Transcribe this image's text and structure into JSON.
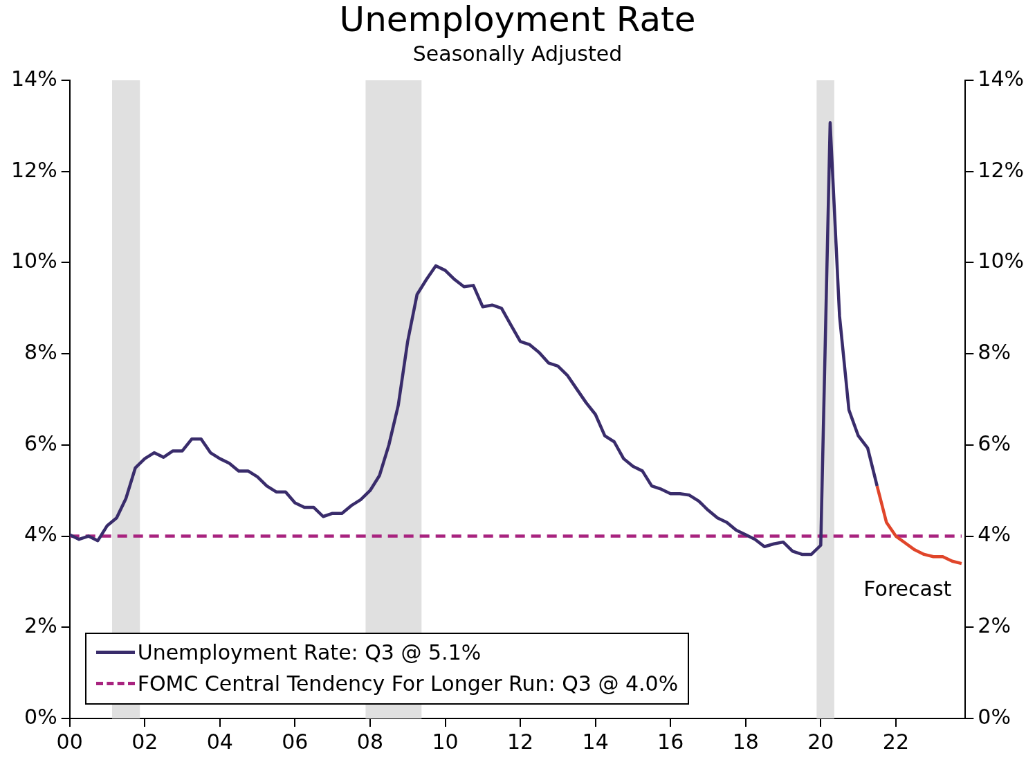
{
  "chart_data": {
    "type": "line",
    "title": "Unemployment Rate",
    "subtitle": "Seasonally Adjusted",
    "xlim": [
      2000,
      2023.85
    ],
    "xticks": [
      {
        "value": 2000,
        "label": "00"
      },
      {
        "value": 2002,
        "label": "02"
      },
      {
        "value": 2004,
        "label": "04"
      },
      {
        "value": 2006,
        "label": "06"
      },
      {
        "value": 2008,
        "label": "08"
      },
      {
        "value": 2010,
        "label": "10"
      },
      {
        "value": 2012,
        "label": "12"
      },
      {
        "value": 2014,
        "label": "14"
      },
      {
        "value": 2016,
        "label": "16"
      },
      {
        "value": 2018,
        "label": "18"
      },
      {
        "value": 2020,
        "label": "20"
      },
      {
        "value": 2022,
        "label": "22"
      }
    ],
    "ylim": [
      0,
      14
    ],
    "yticks": [
      {
        "value": 0,
        "label": "0%"
      },
      {
        "value": 2,
        "label": "2%"
      },
      {
        "value": 4,
        "label": "4%"
      },
      {
        "value": 6,
        "label": "6%"
      },
      {
        "value": 8,
        "label": "8%"
      },
      {
        "value": 10,
        "label": "10%"
      },
      {
        "value": 12,
        "label": "12%"
      },
      {
        "value": 14,
        "label": "14%"
      }
    ],
    "y2lim": [
      0,
      14
    ],
    "y2ticks": [
      {
        "value": 0,
        "label": "0%"
      },
      {
        "value": 2,
        "label": "2%"
      },
      {
        "value": 4,
        "label": "4%"
      },
      {
        "value": 6,
        "label": "6%"
      },
      {
        "value": 8,
        "label": "8%"
      },
      {
        "value": 10,
        "label": "10%"
      },
      {
        "value": 12,
        "label": "12%"
      },
      {
        "value": 14,
        "label": "14%"
      }
    ],
    "legend": "bottom left",
    "marker": "none",
    "series": [
      {
        "name": "Unemployment Rate: Q3 @ 5.1%",
        "color": "#392c6b",
        "line_style": "solid",
        "x": [
          2000,
          2000.25,
          2000.5,
          2000.75,
          2001,
          2001.25,
          2001.5,
          2001.75,
          2002,
          2002.25,
          2002.5,
          2002.75,
          2003,
          2003.25,
          2003.5,
          2003.75,
          2004,
          2004.25,
          2004.5,
          2004.75,
          2005,
          2005.25,
          2005.5,
          2005.75,
          2006,
          2006.25,
          2006.5,
          2006.75,
          2007,
          2007.25,
          2007.5,
          2007.75,
          2008,
          2008.25,
          2008.5,
          2008.75,
          2009,
          2009.25,
          2009.5,
          2009.75,
          2010,
          2010.25,
          2010.5,
          2010.75,
          2011,
          2011.25,
          2011.5,
          2011.75,
          2012,
          2012.25,
          2012.5,
          2012.75,
          2013,
          2013.25,
          2013.5,
          2013.75,
          2014,
          2014.25,
          2014.5,
          2014.75,
          2015,
          2015.25,
          2015.5,
          2015.75,
          2016,
          2016.25,
          2016.5,
          2016.75,
          2017,
          2017.25,
          2017.5,
          2017.75,
          2018,
          2018.25,
          2018.5,
          2018.75,
          2019,
          2019.25,
          2019.5,
          2019.75,
          2020,
          2020.25,
          2020.5,
          2020.75,
          2021,
          2021.25,
          2021.5
        ],
        "values": [
          4.03,
          3.93,
          4.0,
          3.9,
          4.23,
          4.4,
          4.83,
          5.5,
          5.7,
          5.83,
          5.73,
          5.87,
          5.87,
          6.13,
          6.13,
          5.83,
          5.7,
          5.6,
          5.43,
          5.43,
          5.3,
          5.1,
          4.97,
          4.97,
          4.73,
          4.63,
          4.63,
          4.43,
          4.5,
          4.5,
          4.67,
          4.8,
          5.0,
          5.33,
          6.0,
          6.87,
          8.27,
          9.3,
          9.63,
          9.93,
          9.83,
          9.63,
          9.47,
          9.5,
          9.03,
          9.07,
          9.0,
          8.63,
          8.27,
          8.2,
          8.03,
          7.8,
          7.73,
          7.53,
          7.23,
          6.93,
          6.67,
          6.2,
          6.07,
          5.7,
          5.53,
          5.43,
          5.1,
          5.03,
          4.93,
          4.93,
          4.9,
          4.77,
          4.57,
          4.4,
          4.3,
          4.13,
          4.03,
          3.93,
          3.77,
          3.83,
          3.87,
          3.67,
          3.6,
          3.6,
          3.8,
          13.07,
          8.83,
          6.77,
          6.2,
          5.93,
          5.1
        ]
      },
      {
        "color": "#e0452a",
        "line_style": "solid",
        "x": [
          2021.5,
          2021.75,
          2022,
          2022.25,
          2022.5,
          2022.75,
          2023,
          2023.25,
          2023.5,
          2023.75
        ],
        "values": [
          5.1,
          4.3,
          4.0,
          3.85,
          3.7,
          3.6,
          3.55,
          3.55,
          3.45,
          3.4
        ]
      },
      {
        "name": "FOMC Central Tendency For Longer Run: Q3 @ 4.0%",
        "color": "#a8237f",
        "line_style": "dashed",
        "x": [
          2000,
          2023.75
        ],
        "values": [
          4.0,
          4.0
        ]
      }
    ],
    "bands": [
      {
        "axis": "x",
        "from": 2001.13,
        "to": 2001.87,
        "color": "#e0e0e0"
      },
      {
        "axis": "x",
        "from": 2007.88,
        "to": 2009.37,
        "color": "#e0e0e0"
      },
      {
        "axis": "x",
        "from": 2019.89,
        "to": 2020.36,
        "color": "#e0e0e0"
      }
    ],
    "annotations": [
      "Forecast"
    ]
  }
}
